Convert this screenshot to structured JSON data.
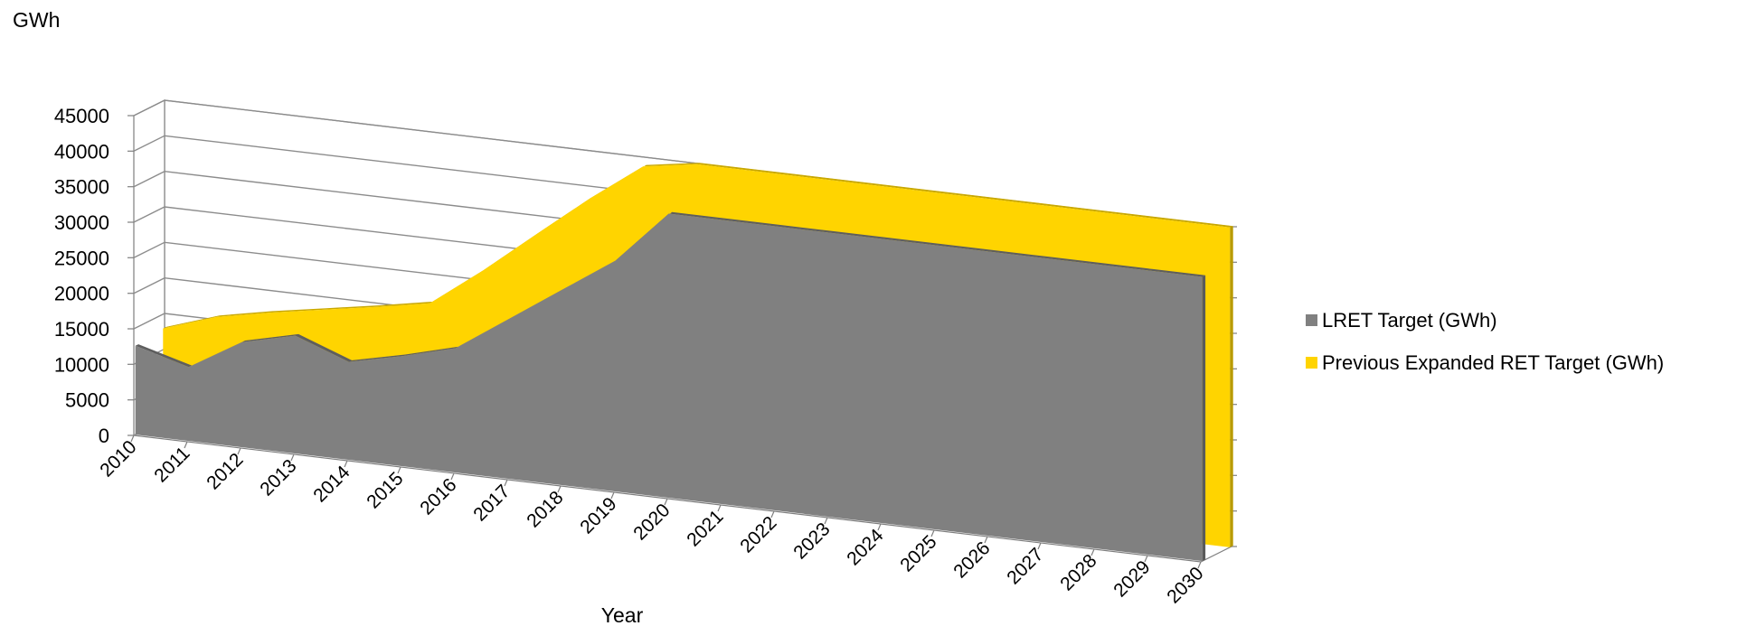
{
  "chart_data": {
    "type": "area",
    "style": "3d-area",
    "title": "",
    "xlabel": "Year",
    "ylabel": "GWh",
    "ylim": [
      0,
      45000
    ],
    "ytick_step": 5000,
    "grid": true,
    "legend": "right",
    "categories": [
      "2010",
      "2011",
      "2012",
      "2013",
      "2014",
      "2015",
      "2016",
      "2017",
      "2018",
      "2019",
      "2020",
      "2021",
      "2022",
      "2023",
      "2024",
      "2025",
      "2026",
      "2027",
      "2028",
      "2029",
      "2030"
    ],
    "series": [
      {
        "name": "LRET Target (GWh)",
        "color": "#808080",
        "values": [
          12500,
          10400,
          14800,
          16600,
          13800,
          15500,
          17500,
          22500,
          27500,
          32500,
          40000,
          40000,
          40000,
          40000,
          40000,
          40000,
          40000,
          40000,
          40000,
          40000,
          40000
        ]
      },
      {
        "name": "Previous Expanded RET Target (GWh)",
        "color": "#ffd400",
        "values": [
          13000,
          15500,
          17000,
          18300,
          19600,
          21000,
          26500,
          32500,
          38400,
          43800,
          45000,
          45000,
          45000,
          45000,
          45000,
          45000,
          45000,
          45000,
          45000,
          45000,
          45000
        ]
      }
    ]
  }
}
